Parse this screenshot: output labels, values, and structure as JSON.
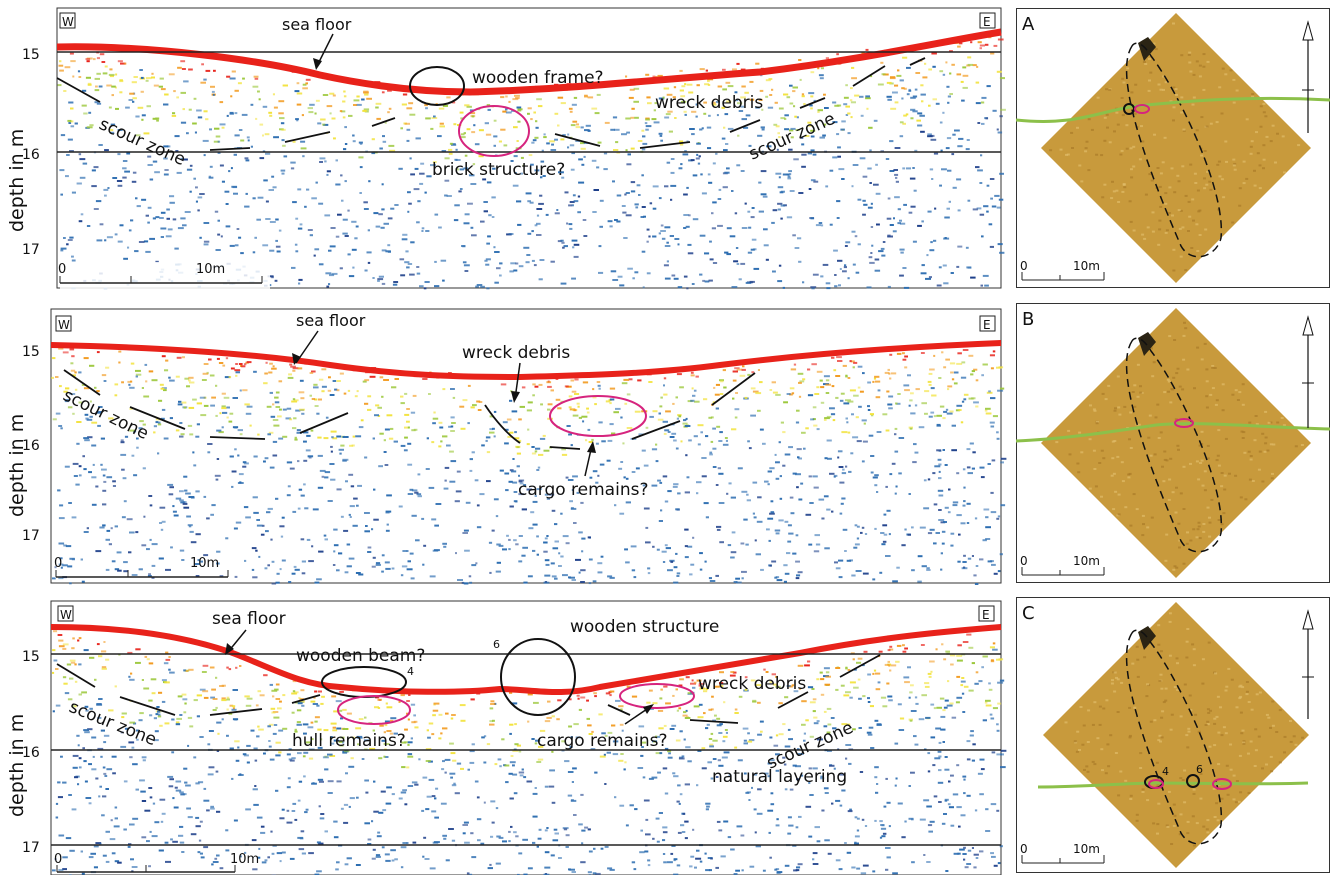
{
  "common": {
    "west": "W",
    "east": "E",
    "ylabel": "depth in m",
    "depth_ticks": [
      "15",
      "16",
      "17"
    ],
    "scale_label": "10m",
    "scale_zero": "0"
  },
  "profiles": [
    {
      "id": "A",
      "labels": {
        "sea_floor": "sea floor",
        "wooden_frame": "wooden frame?",
        "wreck_debris": "wreck debris",
        "scour_zone_left": "scour zone",
        "scour_zone_right": "scour zone",
        "brick_structure": "brick structure?"
      }
    },
    {
      "id": "B",
      "labels": {
        "sea_floor": "sea floor",
        "wreck_debris": "wreck debris",
        "scour_zone": "scour zone",
        "cargo_remains": "cargo remains?"
      }
    },
    {
      "id": "C",
      "labels": {
        "sea_floor": "sea floor",
        "wooden_beam": "wooden beam?",
        "wooden_beam_num": "4",
        "wooden_structure": "wooden structure",
        "wooden_structure_num": "6",
        "wreck_debris": "wreck debris",
        "scour_zone_left": "scour zone",
        "scour_zone_right": "scour zone",
        "hull_remains": "hull remains?",
        "cargo_remains": "cargo remains?",
        "natural_layering": "natural layering"
      }
    }
  ],
  "maps": [
    {
      "letter": "A",
      "markers": []
    },
    {
      "letter": "B",
      "markers": []
    },
    {
      "letter": "C",
      "markers": [
        "4",
        "6"
      ]
    }
  ],
  "colors": {
    "seafloor_red": "#e8221a",
    "orange": "#f29a1e",
    "yellow": "#f2e23a",
    "green": "#9cc83c",
    "blue": "#2b6cb0",
    "dark_blue": "#1d3f8a",
    "magenta": "#d6247e",
    "track_green": "#8cc04a",
    "mosaic": "#c89a3c"
  }
}
